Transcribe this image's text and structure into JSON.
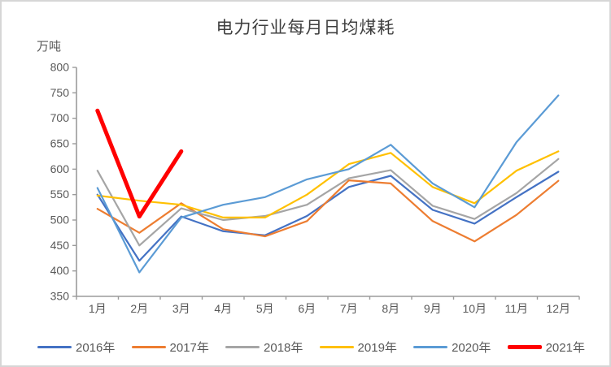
{
  "chart_data": {
    "type": "line",
    "title": "电力行业每月日均煤耗",
    "unit_label": "万吨",
    "categories": [
      "1月",
      "2月",
      "3月",
      "4月",
      "5月",
      "6月",
      "7月",
      "8月",
      "9月",
      "10月",
      "11月",
      "12月"
    ],
    "ylim": [
      350,
      800
    ],
    "ytick_step": 50,
    "grid": false,
    "legend_position": "bottom",
    "axis_color": "#9b9b9b",
    "tick_text_color": "#595959",
    "series": [
      {
        "name": "2016年",
        "color": "#4472C4",
        "width": 2.2,
        "values": [
          550,
          420,
          507,
          478,
          470,
          508,
          565,
          587,
          520,
          493,
          545,
          595
        ]
      },
      {
        "name": "2017年",
        "color": "#ED7D31",
        "width": 2.2,
        "values": [
          522,
          475,
          533,
          482,
          468,
          498,
          578,
          572,
          498,
          458,
          510,
          577
        ]
      },
      {
        "name": "2018年",
        "color": "#A5A5A5",
        "width": 2.2,
        "values": [
          597,
          450,
          523,
          500,
          508,
          530,
          582,
          598,
          528,
          502,
          553,
          620
        ]
      },
      {
        "name": "2019年",
        "color": "#FFC000",
        "width": 2.2,
        "values": [
          548,
          538,
          530,
          505,
          505,
          550,
          610,
          632,
          565,
          533,
          597,
          635
        ]
      },
      {
        "name": "2020年",
        "color": "#5B9BD5",
        "width": 2.2,
        "values": [
          563,
          397,
          505,
          530,
          545,
          580,
          600,
          648,
          572,
          525,
          653,
          745
        ]
      },
      {
        "name": "2021年",
        "color": "#FF0000",
        "width": 5,
        "values": [
          715,
          507,
          635,
          null,
          null,
          null,
          null,
          null,
          null,
          null,
          null,
          null
        ]
      }
    ]
  }
}
